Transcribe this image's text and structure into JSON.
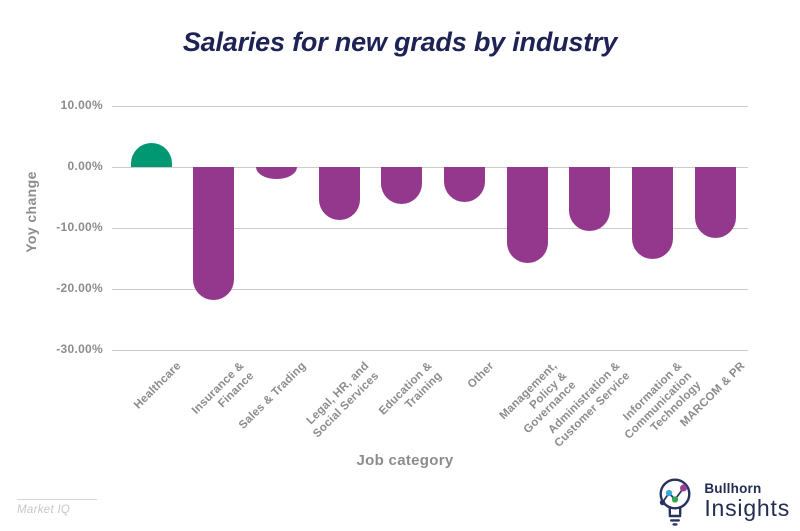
{
  "page": {
    "title": "Salaries for new grads by industry"
  },
  "chart_data": {
    "type": "bar",
    "title": "Salaries for new grads by industry",
    "xlabel": "Job category",
    "ylabel": "Yoy change",
    "categories": [
      "Healthcare",
      "Insurance & Finance",
      "Sales & Trading",
      "Legal, HR, and Social Services",
      "Education & Training",
      "Other",
      "Management, Policy & Governance",
      "Administration & Customer Service",
      "Information & Communication Technology",
      "MARCOM & PR"
    ],
    "categories_display": [
      "Healthcare",
      "Insurance &\nFinance",
      "Sales & Trading",
      "Legal, HR, and\nSocial Services",
      "Education &\nTraining",
      "Other",
      "Management,\nPolicy &\nGovernance",
      "Administration &\nCustomer Service",
      "Information &\nCommunication\nTechnology",
      "MARCOM & PR"
    ],
    "values": [
      4.0,
      -21.8,
      -2.0,
      -8.7,
      -6.0,
      -5.7,
      -15.8,
      -10.5,
      -15.0,
      -11.6
    ],
    "unit": "percent",
    "y_ticks": [
      "10.00%",
      "0.00%",
      "-10.00%",
      "-20.00%",
      "-30.00%"
    ],
    "ylim": [
      -30,
      10
    ],
    "grid": "horizontal",
    "legend": "none",
    "positive_color": "#009873",
    "negative_color": "#93388C"
  },
  "colors": {
    "title": "#1E2254",
    "axis_text": "#8C8C8C",
    "gridline": "#CBCBCB"
  },
  "footer": {
    "source": "Market IQ",
    "brand": {
      "name": "Bullhorn",
      "product": "Insights",
      "icon": "lightbulb-chart-icon",
      "colors": {
        "outline": "#27335E",
        "text": "#232D54",
        "dot_navy": "#27335E",
        "dot_blue": "#35A8DD",
        "dot_green": "#2FA84F",
        "dot_purple": "#9C3D98"
      }
    }
  }
}
